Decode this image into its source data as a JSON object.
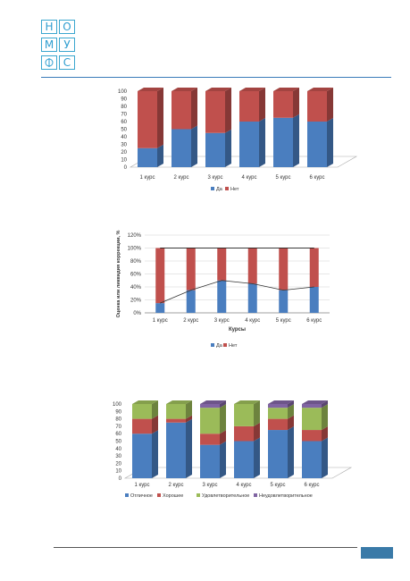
{
  "logo": {
    "letters": [
      "Н",
      "О",
      "М",
      "У",
      "",
      "С"
    ]
  },
  "chart_data": [
    {
      "type": "bar",
      "stacked": true,
      "categories": [
        "1 курс",
        "2 курс",
        "3 курс",
        "4 курс",
        "5 курс",
        "6 курс"
      ],
      "series": [
        {
          "name": "Да",
          "values": [
            25,
            50,
            45,
            60,
            65,
            60
          ]
        },
        {
          "name": "Нет",
          "values": [
            75,
            50,
            55,
            40,
            35,
            40
          ]
        }
      ],
      "ylim": [
        0,
        100
      ],
      "yticks": [
        "0",
        "10",
        "20",
        "30",
        "40",
        "50",
        "60",
        "70",
        "80",
        "90",
        "100"
      ],
      "legend": "bottom",
      "colors": {
        "Да": "#4a7ebf",
        "Нет": "#c0504d"
      }
    },
    {
      "type": "bar",
      "stacked": true,
      "categories": [
        "1 курс",
        "2 курс",
        "3 курс",
        "4 курс",
        "5 курс",
        "6 курс"
      ],
      "series": [
        {
          "name": "Да",
          "values": [
            15,
            35,
            50,
            45,
            35,
            40
          ]
        },
        {
          "name": "Нет",
          "values": [
            85,
            65,
            50,
            55,
            65,
            60
          ]
        }
      ],
      "line_overlay": [
        15,
        35,
        50,
        45,
        35,
        40
      ],
      "ylim": [
        0,
        120
      ],
      "yticks": [
        "0%",
        "20%",
        "40%",
        "60%",
        "80%",
        "100%",
        "120%"
      ],
      "xlabel": "Курсы",
      "ylabel": "Оценка или ликвидия коррекции, %",
      "legend": "bottom",
      "colors": {
        "Да": "#4a7ebf",
        "Нет": "#c0504d"
      }
    },
    {
      "type": "bar",
      "stacked": true,
      "categories": [
        "1 курс",
        "2 курс",
        "3 курс",
        "4 курс",
        "5 курс",
        "6 курс"
      ],
      "series": [
        {
          "name": "Отличное",
          "values": [
            60,
            75,
            45,
            50,
            65,
            50
          ]
        },
        {
          "name": "Хорошее",
          "values": [
            20,
            5,
            15,
            20,
            15,
            15
          ]
        },
        {
          "name": "Удовлетворительное",
          "values": [
            20,
            20,
            35,
            30,
            15,
            30
          ]
        },
        {
          "name": "Неудовлетворительное",
          "values": [
            0,
            0,
            5,
            0,
            5,
            5
          ]
        }
      ],
      "ylim": [
        0,
        100
      ],
      "yticks": [
        "0",
        "10",
        "20",
        "30",
        "40",
        "50",
        "60",
        "70",
        "80",
        "90",
        "100"
      ],
      "legend": "bottom",
      "colors": {
        "Отличное": "#4a7ebf",
        "Хорошее": "#c0504d",
        "Удовлетворительное": "#9bbb59",
        "Неудовлетворительное": "#8064a2"
      }
    }
  ]
}
